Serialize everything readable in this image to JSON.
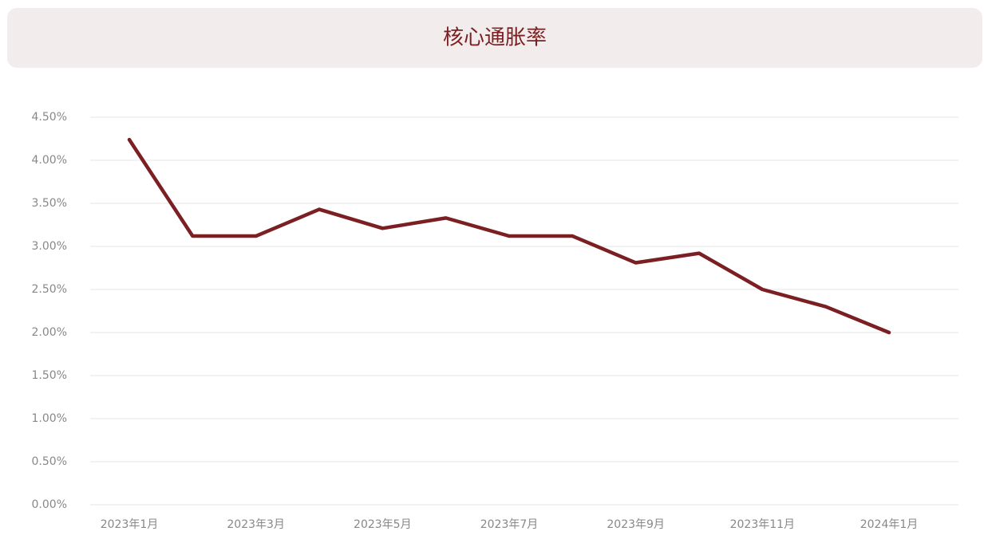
{
  "chart_data": {
    "type": "line",
    "title": "核心通胀率",
    "categories": [
      "2023年1月",
      null,
      "2023年3月",
      null,
      "2023年5月",
      null,
      "2023年7月",
      null,
      "2023年9月",
      null,
      "2023年11月",
      null,
      "2024年1月"
    ],
    "series": [
      {
        "name": null,
        "color": "#7b1f22",
        "values": [
          4.24,
          3.12,
          3.12,
          3.43,
          3.21,
          3.33,
          3.12,
          3.12,
          2.81,
          2.92,
          2.5,
          2.3,
          2.0
        ]
      }
    ],
    "ylim": [
      0,
      4.5
    ],
    "yticks": [
      {
        "value": 0,
        "label": "0.00%"
      },
      {
        "value": 0.5,
        "label": "0.50%"
      },
      {
        "value": 1,
        "label": "1.00%"
      },
      {
        "value": 1.5,
        "label": "1.50%"
      },
      {
        "value": 2,
        "label": "2.00%"
      },
      {
        "value": 2.5,
        "label": "2.50%"
      },
      {
        "value": 3,
        "label": "3.00%"
      },
      {
        "value": 3.5,
        "label": "3.50%"
      },
      {
        "value": 4,
        "label": "4.00%"
      },
      {
        "value": 4.5,
        "label": "4.50%"
      }
    ],
    "grid": true
  }
}
